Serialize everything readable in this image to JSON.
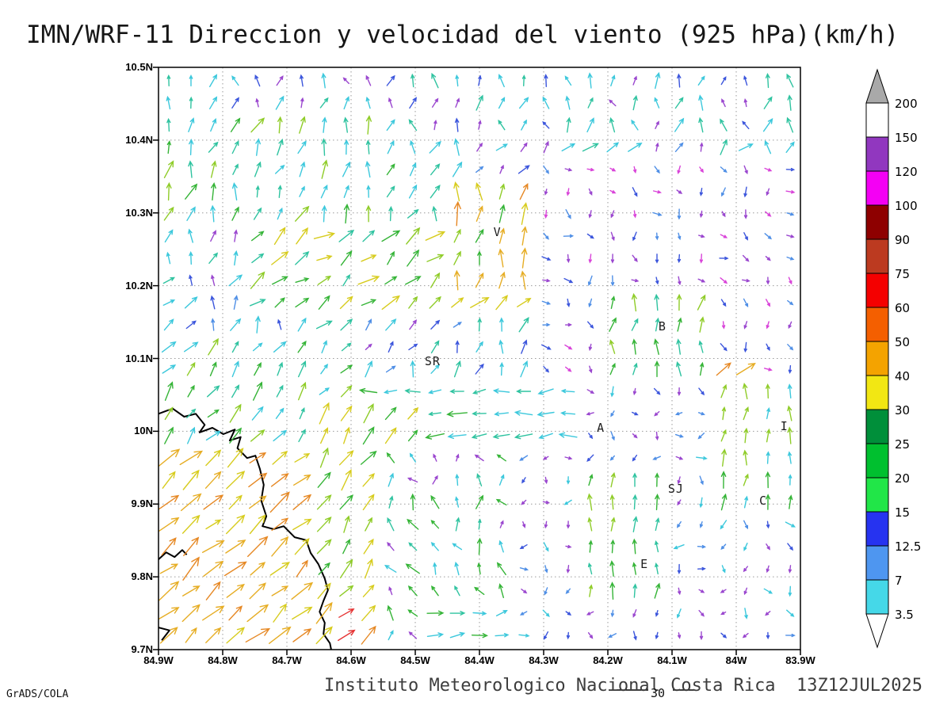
{
  "window": {
    "title": "IMN/WRF-11 Direccion y velocidad del viento (925 hPa)(km/h)"
  },
  "footer": {
    "caption": "Instituto Meteorologico Nacional Costa Rica  13Z12JUL2025",
    "credit": "GrADS/COLA",
    "contour_label": "30"
  },
  "chart_data": {
    "type": "vector_field",
    "title": "IMN/WRF-11 Direccion y velocidad del viento (925 hPa)(km/h)",
    "model": "IMN/WRF-11",
    "field": "Direccion y velocidad del viento",
    "level": "925 hPa",
    "units": "km/h",
    "valid_time": "13Z12JUL2025",
    "x_axis": {
      "ticks": [
        "84.9W",
        "84.8W",
        "84.7W",
        "84.6W",
        "84.5W",
        "84.4W",
        "84.3W",
        "84.2W",
        "84.1W",
        "84W",
        "83.9W"
      ]
    },
    "y_axis": {
      "ticks": [
        "10.5N",
        "10.4N",
        "10.3N",
        "10.2N",
        "10.1N",
        "10N",
        "9.9N",
        "9.8N",
        "9.7N"
      ]
    },
    "grid": {
      "style": "dotted",
      "interval_deg": 0.1
    },
    "colorbar": {
      "labels": [
        "200",
        "150",
        "120",
        "100",
        "90",
        "75",
        "60",
        "50",
        "40",
        "30",
        "25",
        "20",
        "15",
        "12.5",
        "7",
        "3.5"
      ],
      "segments_top_to_bottom": [
        {
          "range": "> 200",
          "color": "#a9a9a9",
          "cap": "up"
        },
        {
          "range": "150-200",
          "color": "#ffffff"
        },
        {
          "range": "120-150",
          "color": "#9137bf"
        },
        {
          "range": "100-120",
          "color": "#f400f4"
        },
        {
          "range": "90-100",
          "color": "#8e0000"
        },
        {
          "range": "75-90",
          "color": "#bc3a20"
        },
        {
          "range": "60-75",
          "color": "#f40000"
        },
        {
          "range": "50-60",
          "color": "#f45f00"
        },
        {
          "range": "40-50",
          "color": "#f4a300"
        },
        {
          "range": "30-40",
          "color": "#f2e713"
        },
        {
          "range": "25-30",
          "color": "#008f3a"
        },
        {
          "range": "20-25",
          "color": "#00c02f"
        },
        {
          "range": "15-20",
          "color": "#21e648"
        },
        {
          "range": "12.5-15",
          "color": "#2633f0"
        },
        {
          "range": "7-12.5",
          "color": "#4e96f0"
        },
        {
          "range": "3.5-7",
          "color": "#45d8e8"
        },
        {
          "range": "< 3.5",
          "color": "#ffffff",
          "cap": "down"
        }
      ]
    },
    "stations": [
      {
        "text": "V",
        "fx": 0.528,
        "fy": 0.283
      },
      {
        "text": "B",
        "fx": 0.785,
        "fy": 0.445
      },
      {
        "text": "SR",
        "fx": 0.427,
        "fy": 0.505
      },
      {
        "text": "A",
        "fx": 0.689,
        "fy": 0.619
      },
      {
        "text": "SJ",
        "fx": 0.806,
        "fy": 0.724
      },
      {
        "text": "C",
        "fx": 0.942,
        "fy": 0.744
      },
      {
        "text": "E",
        "fx": 0.757,
        "fy": 0.853
      },
      {
        "text": "I",
        "fx": 0.975,
        "fy": 0.616
      }
    ],
    "coastlines": [
      [
        [
          0.0,
          0.595
        ],
        [
          0.022,
          0.586
        ],
        [
          0.04,
          0.6
        ],
        [
          0.058,
          0.595
        ],
        [
          0.072,
          0.614
        ],
        [
          0.064,
          0.627
        ],
        [
          0.084,
          0.619
        ],
        [
          0.101,
          0.63
        ],
        [
          0.119,
          0.622
        ],
        [
          0.111,
          0.641
        ],
        [
          0.128,
          0.635
        ],
        [
          0.123,
          0.654
        ],
        [
          0.138,
          0.671
        ],
        [
          0.151,
          0.667
        ],
        [
          0.158,
          0.69
        ],
        [
          0.164,
          0.717
        ],
        [
          0.16,
          0.744
        ],
        [
          0.168,
          0.771
        ],
        [
          0.162,
          0.788
        ],
        [
          0.179,
          0.793
        ],
        [
          0.195,
          0.788
        ],
        [
          0.212,
          0.807
        ],
        [
          0.23,
          0.812
        ],
        [
          0.237,
          0.834
        ],
        [
          0.249,
          0.853
        ],
        [
          0.259,
          0.878
        ],
        [
          0.264,
          0.898
        ],
        [
          0.257,
          0.916
        ],
        [
          0.251,
          0.935
        ],
        [
          0.259,
          0.954
        ],
        [
          0.257,
          0.973
        ],
        [
          0.267,
          0.989
        ],
        [
          0.269,
          1.0
        ]
      ],
      [
        [
          0.0,
          0.845
        ],
        [
          0.012,
          0.833
        ],
        [
          0.025,
          0.841
        ],
        [
          0.037,
          0.829
        ],
        [
          0.044,
          0.837
        ]
      ],
      [
        [
          0.0,
          0.962
        ],
        [
          0.017,
          0.967
        ],
        [
          0.005,
          0.984
        ]
      ]
    ],
    "wind_field": {
      "grid_spacing_px": 28,
      "arrow_classes": {
        "cyan": {
          "color": "#3cc8dc",
          "len": 17
        },
        "teal": {
          "color": "#2fc3a0",
          "len": 17
        },
        "lblue": {
          "color": "#4f8fe6",
          "len": 14
        },
        "blue": {
          "color": "#3b55dc",
          "len": 14
        },
        "violet": {
          "color": "#9a46cf",
          "len": 12
        },
        "magenta": {
          "color": "#d944d9",
          "len": 12
        },
        "green": {
          "color": "#35b437",
          "len": 19
        },
        "lime": {
          "color": "#8fcc28",
          "len": 20
        },
        "yellow": {
          "color": "#d7cc1e",
          "len": 21
        },
        "gold": {
          "color": "#e6ad24",
          "len": 22
        },
        "orange": {
          "color": "#e68824",
          "len": 23
        },
        "red": {
          "color": "#e63434",
          "len": 23
        }
      },
      "regions": [
        {
          "name": "background",
          "x": [
            0,
            1
          ],
          "y": [
            0,
            1
          ],
          "dir": 70,
          "spread": 45,
          "classes": [
            "cyan",
            "cyan",
            "lblue",
            "violet",
            "blue",
            "teal"
          ],
          "len": 1.0
        },
        {
          "name": "top-rows",
          "x": [
            0,
            1
          ],
          "y": [
            0,
            0.1
          ],
          "dir": 95,
          "spread": 45,
          "classes": [
            "cyan",
            "blue",
            "violet",
            "cyan",
            "teal"
          ],
          "len": 0.95
        },
        {
          "name": "nw-band",
          "x": [
            0,
            0.38
          ],
          "y": [
            0.07,
            0.26
          ],
          "dir": 72,
          "spread": 30,
          "classes": [
            "teal",
            "green",
            "cyan",
            "lime",
            "cyan"
          ],
          "len": 1.0
        },
        {
          "name": "center-jet",
          "x": [
            0.14,
            0.62
          ],
          "y": [
            0.27,
            0.44
          ],
          "dir": 38,
          "spread": 24,
          "classes": [
            "green",
            "lime",
            "green",
            "teal",
            "yellow"
          ],
          "len": 1.1
        },
        {
          "name": "v-plume",
          "x": [
            0.44,
            0.64
          ],
          "y": [
            0.2,
            0.4
          ],
          "dir": 82,
          "spread": 28,
          "classes": [
            "yellow",
            "gold",
            "lime",
            "orange",
            "green"
          ],
          "len": 1.05
        },
        {
          "name": "east-sink",
          "x": [
            0.6,
            1
          ],
          "y": [
            0.16,
            0.52
          ],
          "dir": -55,
          "spread": 60,
          "classes": [
            "violet",
            "blue",
            "lblue",
            "violet",
            "magenta"
          ],
          "len": 0.7
        },
        {
          "name": "b-updraft",
          "x": [
            0.7,
            0.87
          ],
          "y": [
            0.37,
            0.52
          ],
          "dir": 85,
          "spread": 24,
          "classes": [
            "green",
            "lime",
            "teal"
          ],
          "len": 0.95
        },
        {
          "name": "se-quadrant",
          "x": [
            0.54,
            1
          ],
          "y": [
            0.52,
            1
          ],
          "dir": -80,
          "spread": 85,
          "classes": [
            "violet",
            "blue",
            "violet",
            "lblue",
            "cyan"
          ],
          "len": 0.62
        },
        {
          "name": "west-band",
          "x": [
            0.24,
            0.66
          ],
          "y": [
            0.54,
            0.66
          ],
          "dir": 184,
          "spread": 16,
          "classes": [
            "cyan",
            "teal",
            "green",
            "cyan"
          ],
          "len": 1.1
        },
        {
          "name": "sw-mid",
          "x": [
            0,
            0.3
          ],
          "y": [
            0.46,
            0.68
          ],
          "dir": 50,
          "spread": 20,
          "classes": [
            "green",
            "teal",
            "lime",
            "cyan"
          ],
          "len": 1.05
        },
        {
          "name": "se-green",
          "x": [
            0.67,
            0.78
          ],
          "y": [
            0.68,
            0.92
          ],
          "dir": 88,
          "spread": 16,
          "classes": [
            "green",
            "teal",
            "lime"
          ],
          "len": 0.9
        },
        {
          "name": "east-green-col",
          "x": [
            0.88,
            1
          ],
          "y": [
            0.54,
            0.76
          ],
          "dir": 85,
          "spread": 18,
          "classes": [
            "green",
            "lime",
            "cyan"
          ],
          "len": 0.9
        },
        {
          "name": "east-orange",
          "x": [
            0.87,
            0.94
          ],
          "y": [
            0.49,
            0.545
          ],
          "dir": 40,
          "spread": 10,
          "classes": [
            "orange",
            "gold"
          ],
          "len": 1.0
        },
        {
          "name": "sw-onshore",
          "x": [
            0,
            0.33
          ],
          "y": [
            0.66,
            1
          ],
          "dir": 42,
          "spread": 14,
          "classes": [
            "gold",
            "orange",
            "yellow",
            "gold"
          ],
          "len": 1.25
        },
        {
          "name": "coast-strip",
          "x": [
            0.24,
            0.4
          ],
          "y": [
            0.58,
            0.93
          ],
          "dir": 55,
          "spread": 18,
          "classes": [
            "green",
            "yellow",
            "lime"
          ],
          "len": 1.1
        },
        {
          "name": "red-spot",
          "x": [
            0.26,
            0.32
          ],
          "y": [
            0.92,
            1
          ],
          "dir": 35,
          "spread": 10,
          "classes": [
            "red",
            "orange"
          ],
          "len": 1.15
        },
        {
          "name": "bottom-center",
          "x": [
            0.36,
            0.56
          ],
          "y": [
            0.66,
            1
          ],
          "dir": 108,
          "spread": 50,
          "classes": [
            "cyan",
            "green",
            "teal",
            "violet",
            "green"
          ],
          "len": 0.85
        },
        {
          "name": "bottom-center-east",
          "x": [
            0.4,
            0.55
          ],
          "y": [
            0.92,
            1
          ],
          "dir": 12,
          "spread": 18,
          "classes": [
            "green",
            "cyan",
            "teal"
          ],
          "len": 0.95
        }
      ]
    }
  }
}
